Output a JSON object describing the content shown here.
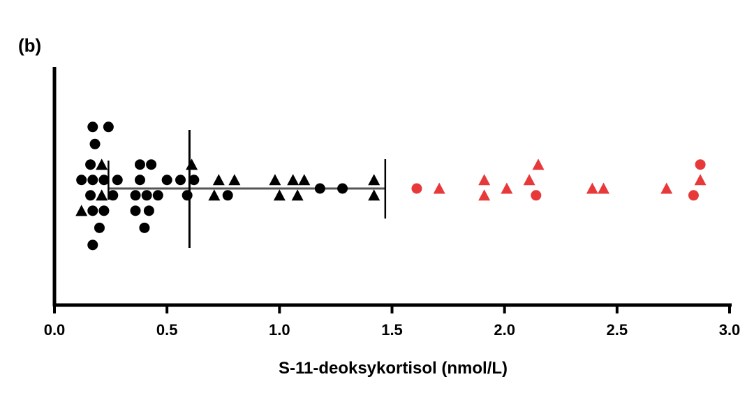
{
  "panel_label": "(b)",
  "colors": {
    "normal": "#000000",
    "elevated": "#e8393a",
    "axis": "#000000",
    "summary": "#000000"
  },
  "chart_data": {
    "type": "scatter",
    "orientation": "horizontal-dot-strip",
    "xlabel": "S-11-deoksykortisol (nmol/L)",
    "xlim": [
      0.0,
      3.0
    ],
    "xticks": [
      "0.0",
      "0.5",
      "1.0",
      "1.5",
      "2.0",
      "2.5",
      "3.0"
    ],
    "xtick_values": [
      0.0,
      0.5,
      1.0,
      1.5,
      2.0,
      2.5,
      3.0
    ],
    "grid": false,
    "summary": {
      "median": 0.6,
      "range": [
        0.24,
        1.47
      ]
    },
    "series": [
      {
        "color": "#000000",
        "points": [
          {
            "x": 0.17,
            "y": 1.8,
            "marker": "circle"
          },
          {
            "x": 0.24,
            "y": 1.8,
            "marker": "circle"
          },
          {
            "x": 0.18,
            "y": 1.3,
            "marker": "circle"
          },
          {
            "x": 0.16,
            "y": 0.7,
            "marker": "circle"
          },
          {
            "x": 0.21,
            "y": 0.7,
            "marker": "triangle"
          },
          {
            "x": 0.12,
            "y": 0.25,
            "marker": "circle"
          },
          {
            "x": 0.17,
            "y": 0.25,
            "marker": "circle"
          },
          {
            "x": 0.22,
            "y": 0.25,
            "marker": "circle"
          },
          {
            "x": 0.28,
            "y": 0.25,
            "marker": "circle"
          },
          {
            "x": 0.16,
            "y": -0.2,
            "marker": "circle"
          },
          {
            "x": 0.21,
            "y": -0.2,
            "marker": "triangle"
          },
          {
            "x": 0.26,
            "y": -0.2,
            "marker": "circle"
          },
          {
            "x": 0.12,
            "y": -0.65,
            "marker": "triangle"
          },
          {
            "x": 0.17,
            "y": -0.65,
            "marker": "circle"
          },
          {
            "x": 0.22,
            "y": -0.65,
            "marker": "circle"
          },
          {
            "x": 0.2,
            "y": -1.15,
            "marker": "circle"
          },
          {
            "x": 0.17,
            "y": -1.65,
            "marker": "circle"
          },
          {
            "x": 0.38,
            "y": 0.7,
            "marker": "circle"
          },
          {
            "x": 0.43,
            "y": 0.7,
            "marker": "circle"
          },
          {
            "x": 0.38,
            "y": 0.25,
            "marker": "circle"
          },
          {
            "x": 0.5,
            "y": 0.25,
            "marker": "circle"
          },
          {
            "x": 0.36,
            "y": -0.2,
            "marker": "circle"
          },
          {
            "x": 0.41,
            "y": -0.2,
            "marker": "circle"
          },
          {
            "x": 0.46,
            "y": -0.2,
            "marker": "circle"
          },
          {
            "x": 0.36,
            "y": -0.65,
            "marker": "circle"
          },
          {
            "x": 0.42,
            "y": -0.65,
            "marker": "circle"
          },
          {
            "x": 0.4,
            "y": -1.15,
            "marker": "circle"
          },
          {
            "x": 0.61,
            "y": 0.7,
            "marker": "triangle"
          },
          {
            "x": 0.56,
            "y": 0.25,
            "marker": "circle"
          },
          {
            "x": 0.62,
            "y": 0.25,
            "marker": "circle"
          },
          {
            "x": 0.59,
            "y": -0.2,
            "marker": "circle"
          },
          {
            "x": 0.73,
            "y": 0.25,
            "marker": "triangle"
          },
          {
            "x": 0.8,
            "y": 0.25,
            "marker": "triangle"
          },
          {
            "x": 0.71,
            "y": -0.2,
            "marker": "triangle"
          },
          {
            "x": 0.77,
            "y": -0.2,
            "marker": "circle"
          },
          {
            "x": 0.98,
            "y": 0.25,
            "marker": "triangle"
          },
          {
            "x": 1.06,
            "y": 0.25,
            "marker": "triangle"
          },
          {
            "x": 1.11,
            "y": 0.25,
            "marker": "triangle"
          },
          {
            "x": 1.0,
            "y": -0.2,
            "marker": "triangle"
          },
          {
            "x": 1.08,
            "y": -0.2,
            "marker": "triangle"
          },
          {
            "x": 1.18,
            "y": 0.0,
            "marker": "circle"
          },
          {
            "x": 1.28,
            "y": 0.0,
            "marker": "circle"
          },
          {
            "x": 1.42,
            "y": 0.25,
            "marker": "triangle"
          },
          {
            "x": 1.42,
            "y": -0.2,
            "marker": "triangle"
          }
        ]
      },
      {
        "color": "#e8393a",
        "points": [
          {
            "x": 1.61,
            "y": 0.0,
            "marker": "circle"
          },
          {
            "x": 1.71,
            "y": 0.0,
            "marker": "triangle"
          },
          {
            "x": 1.91,
            "y": 0.25,
            "marker": "triangle"
          },
          {
            "x": 1.91,
            "y": -0.2,
            "marker": "triangle"
          },
          {
            "x": 2.01,
            "y": 0.0,
            "marker": "triangle"
          },
          {
            "x": 2.11,
            "y": 0.25,
            "marker": "triangle"
          },
          {
            "x": 2.15,
            "y": 0.7,
            "marker": "triangle"
          },
          {
            "x": 2.14,
            "y": -0.2,
            "marker": "circle"
          },
          {
            "x": 2.39,
            "y": 0.0,
            "marker": "triangle"
          },
          {
            "x": 2.44,
            "y": 0.0,
            "marker": "triangle"
          },
          {
            "x": 2.72,
            "y": 0.0,
            "marker": "triangle"
          },
          {
            "x": 2.87,
            "y": 0.7,
            "marker": "circle"
          },
          {
            "x": 2.87,
            "y": 0.25,
            "marker": "triangle"
          },
          {
            "x": 2.84,
            "y": -0.2,
            "marker": "circle"
          }
        ]
      }
    ]
  }
}
